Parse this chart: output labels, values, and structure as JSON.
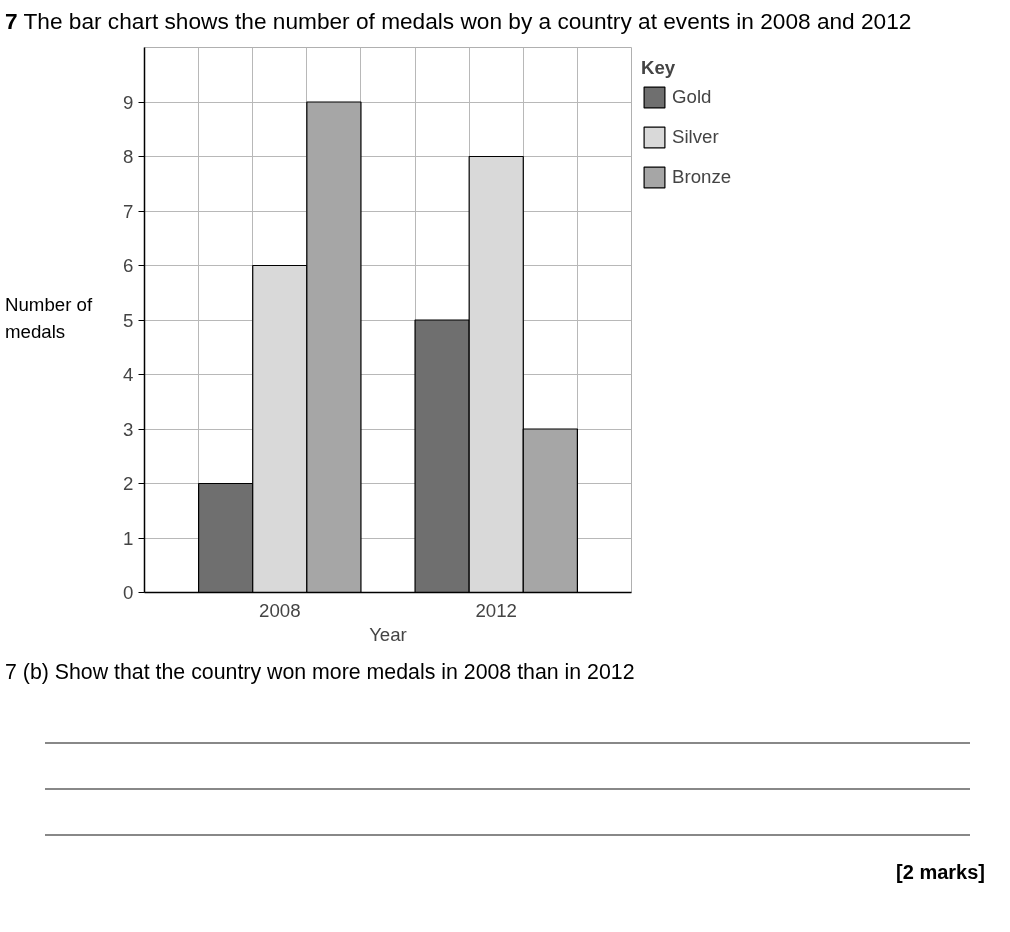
{
  "chart_data": {
    "type": "bar",
    "title": "7 The bar chart shows the number of medals won by a country at events in 2008 and 2012",
    "xlabel": "Year",
    "ylabel": "Number of medals",
    "legend_title": "Key",
    "categories": [
      "2008",
      "2012"
    ],
    "series": [
      {
        "name": "Gold",
        "color": "#6f6f6f",
        "values": [
          2,
          5
        ]
      },
      {
        "name": "Silver",
        "color": "#d9d9d9",
        "values": [
          6,
          8
        ]
      },
      {
        "name": "Bronze",
        "color": "#a6a6a6",
        "values": [
          9,
          3
        ]
      }
    ],
    "ylim": [
      0,
      10
    ],
    "yticks": [
      0,
      1,
      2,
      3,
      4,
      5,
      6,
      7,
      8,
      9
    ],
    "grid": true,
    "legend": "right",
    "annotations": [
      "7 (b) Show that the country won more medals in 2008 than in 2012",
      "[2 marks]"
    ]
  }
}
